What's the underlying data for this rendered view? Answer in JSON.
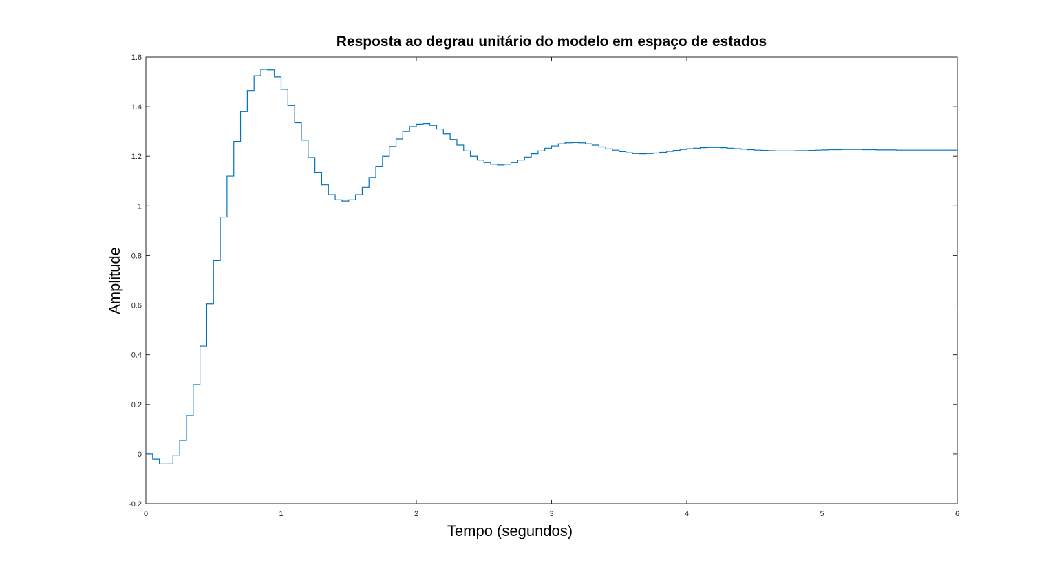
{
  "chart_data": {
    "type": "line",
    "style": "stairs",
    "title": "Resposta ao degrau unitário do modelo em espaço de estados",
    "xlabel": "Tempo (segundos)",
    "ylabel": "Amplitude",
    "xlim": [
      0,
      6
    ],
    "ylim": [
      -0.2,
      1.6
    ],
    "xticks": [
      "0",
      "1",
      "2",
      "3",
      "4",
      "5",
      "6"
    ],
    "yticks": [
      "-0.2",
      "0",
      "0.2",
      "0.4",
      "0.6",
      "0.8",
      "1",
      "1.2",
      "1.4",
      "1.6"
    ],
    "grid": false,
    "line_color": "#0072BD",
    "series": [
      {
        "dt": 0.05,
        "x_start": 0,
        "values": [
          0,
          -0.02,
          -0.04,
          -0.04,
          -0.005,
          0.055,
          0.155,
          0.28,
          0.435,
          0.605,
          0.78,
          0.955,
          1.12,
          1.26,
          1.38,
          1.465,
          1.525,
          1.55,
          1.548,
          1.52,
          1.47,
          1.405,
          1.335,
          1.265,
          1.195,
          1.135,
          1.085,
          1.045,
          1.025,
          1.02,
          1.025,
          1.045,
          1.075,
          1.115,
          1.16,
          1.2,
          1.24,
          1.27,
          1.3,
          1.32,
          1.33,
          1.332,
          1.325,
          1.31,
          1.29,
          1.268,
          1.245,
          1.222,
          1.2,
          1.185,
          1.175,
          1.168,
          1.165,
          1.168,
          1.175,
          1.185,
          1.197,
          1.21,
          1.222,
          1.233,
          1.242,
          1.25,
          1.254,
          1.255,
          1.254,
          1.25,
          1.245,
          1.238,
          1.23,
          1.225,
          1.219,
          1.214,
          1.211,
          1.21,
          1.211,
          1.213,
          1.216,
          1.22,
          1.224,
          1.228,
          1.231,
          1.233,
          1.235,
          1.236,
          1.236,
          1.235,
          1.233,
          1.231,
          1.229,
          1.227,
          1.225,
          1.224,
          1.223,
          1.222,
          1.222,
          1.222,
          1.223,
          1.223,
          1.224,
          1.225,
          1.226,
          1.227,
          1.227,
          1.228,
          1.228,
          1.228,
          1.227,
          1.227,
          1.226,
          1.226,
          1.226,
          1.225,
          1.225,
          1.225,
          1.225,
          1.225,
          1.225,
          1.225,
          1.225,
          1.225,
          1.225
        ]
      }
    ]
  }
}
